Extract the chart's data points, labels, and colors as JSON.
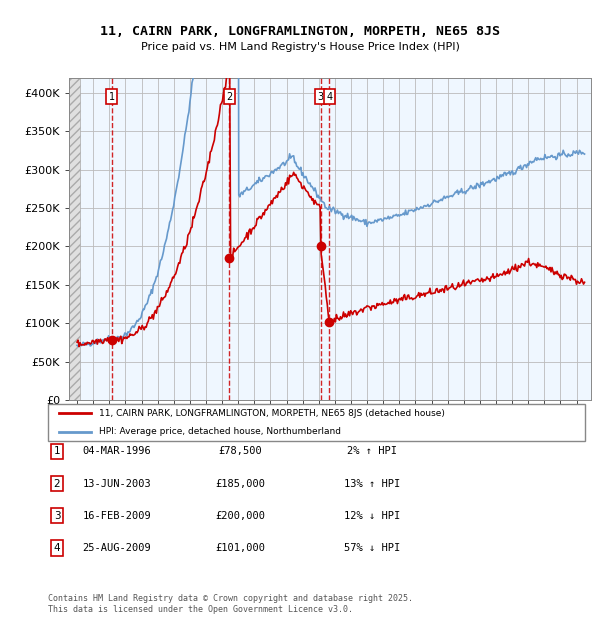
{
  "title_line1": "11, CAIRN PARK, LONGFRAMLINGTON, MORPETH, NE65 8JS",
  "title_line2": "Price paid vs. HM Land Registry's House Price Index (HPI)",
  "ylim": [
    0,
    420000
  ],
  "yticks": [
    0,
    50000,
    100000,
    150000,
    200000,
    250000,
    300000,
    350000,
    400000
  ],
  "ytick_labels": [
    "£0",
    "£50K",
    "£100K",
    "£150K",
    "£200K",
    "£250K",
    "£300K",
    "£350K",
    "£400K"
  ],
  "sale_labels": [
    "1",
    "2",
    "3",
    "4"
  ],
  "legend_line1": "11, CAIRN PARK, LONGFRAMLINGTON, MORPETH, NE65 8JS (detached house)",
  "legend_line2": "HPI: Average price, detached house, Northumberland",
  "table_data": [
    [
      "1",
      "04-MAR-1996",
      "£78,500",
      "2% ↑ HPI"
    ],
    [
      "2",
      "13-JUN-2003",
      "£185,000",
      "13% ↑ HPI"
    ],
    [
      "3",
      "16-FEB-2009",
      "£200,000",
      "12% ↓ HPI"
    ],
    [
      "4",
      "25-AUG-2009",
      "£101,000",
      "57% ↓ HPI"
    ]
  ],
  "footer": "Contains HM Land Registry data © Crown copyright and database right 2025.\nThis data is licensed under the Open Government Licence v3.0.",
  "red_color": "#cc0000",
  "blue_color": "#6699cc",
  "bg_color": "#ddeeff",
  "grid_color": "#bbbbbb"
}
